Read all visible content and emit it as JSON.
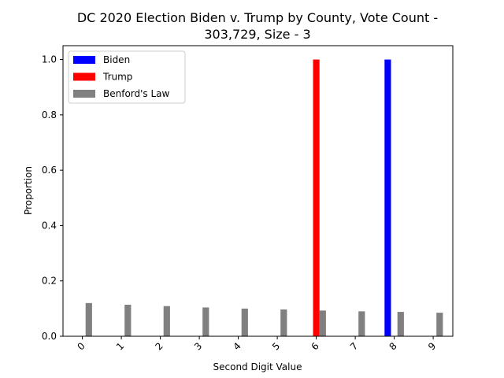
{
  "chart_data": {
    "type": "bar",
    "title_lines": [
      "DC 2020 Election Biden v. Trump by County, Vote Count -",
      "303,729, Size - 3"
    ],
    "xlabel": "Second Digit Value",
    "ylabel": "Proportion",
    "categories": [
      "0",
      "1",
      "2",
      "3",
      "4",
      "5",
      "6",
      "7",
      "8",
      "9"
    ],
    "ylim": [
      0,
      1.05
    ],
    "yticks": [
      0.0,
      0.2,
      0.4,
      0.6,
      0.8,
      1.0
    ],
    "ytick_labels": [
      "0.0",
      "0.2",
      "0.4",
      "0.6",
      "0.8",
      "1.0"
    ],
    "grid": false,
    "legend_position": "top-left",
    "series": [
      {
        "name": "Biden",
        "color": "#0000ff",
        "values": [
          0,
          0,
          0,
          0,
          0,
          0,
          0,
          0,
          1.0,
          0
        ]
      },
      {
        "name": "Trump",
        "color": "#ff0000",
        "values": [
          0,
          0,
          0,
          0,
          0,
          0,
          1.0,
          0,
          0,
          0
        ]
      },
      {
        "name": "Benford's Law",
        "color": "#808080",
        "values": [
          0.12,
          0.114,
          0.109,
          0.104,
          0.1,
          0.097,
          0.093,
          0.09,
          0.088,
          0.085
        ]
      }
    ]
  }
}
